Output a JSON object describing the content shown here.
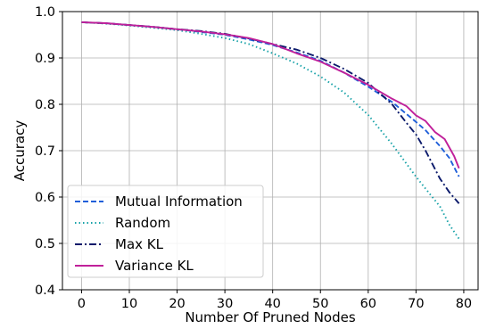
{
  "chart_data": {
    "type": "line",
    "title": "",
    "xlabel": "Number Of Pruned Nodes",
    "ylabel": "Accuracy",
    "xlim": [
      -4,
      83
    ],
    "ylim": [
      0.4,
      1.0
    ],
    "xticks": [
      0,
      10,
      20,
      30,
      40,
      50,
      60,
      70,
      80
    ],
    "yticks": [
      0.4,
      0.5,
      0.6,
      0.7,
      0.8,
      0.9,
      1.0
    ],
    "grid": true,
    "legend_position": "lower-left",
    "series": [
      {
        "name": "Mutual Information",
        "color": "#1f5fd9",
        "dash": "dashed",
        "x": [
          0,
          5,
          10,
          15,
          20,
          25,
          30,
          35,
          40,
          45,
          50,
          55,
          60,
          65,
          70,
          72,
          75,
          77,
          79
        ],
        "y": [
          0.977,
          0.975,
          0.971,
          0.967,
          0.962,
          0.956,
          0.95,
          0.94,
          0.928,
          0.912,
          0.894,
          0.868,
          0.838,
          0.805,
          0.762,
          0.744,
          0.71,
          0.684,
          0.644
        ]
      },
      {
        "name": "Random",
        "color": "#17a2a8",
        "dash": "dotted",
        "x": [
          0,
          5,
          10,
          15,
          20,
          25,
          30,
          35,
          40,
          45,
          50,
          55,
          60,
          65,
          70,
          72,
          75,
          77,
          79
        ],
        "y": [
          0.977,
          0.974,
          0.97,
          0.965,
          0.96,
          0.952,
          0.943,
          0.93,
          0.91,
          0.888,
          0.86,
          0.825,
          0.777,
          0.714,
          0.644,
          0.618,
          0.58,
          0.54,
          0.51
        ]
      },
      {
        "name": "Max KL",
        "color": "#0b1a6b",
        "dash": "dashdot",
        "x": [
          0,
          5,
          10,
          15,
          20,
          25,
          30,
          35,
          40,
          45,
          50,
          55,
          60,
          65,
          68,
          70,
          72,
          75,
          77,
          79
        ],
        "y": [
          0.977,
          0.975,
          0.971,
          0.967,
          0.962,
          0.958,
          0.952,
          0.942,
          0.93,
          0.918,
          0.9,
          0.876,
          0.846,
          0.8,
          0.76,
          0.735,
          0.7,
          0.64,
          0.61,
          0.586
        ]
      },
      {
        "name": "Variance KL",
        "color": "#c0209a",
        "dash": "solid",
        "x": [
          0,
          5,
          10,
          15,
          20,
          25,
          30,
          35,
          40,
          45,
          50,
          55,
          60,
          65,
          68,
          70,
          72,
          74,
          76,
          78,
          79
        ],
        "y": [
          0.977,
          0.975,
          0.971,
          0.967,
          0.962,
          0.957,
          0.951,
          0.943,
          0.93,
          0.91,
          0.892,
          0.868,
          0.842,
          0.812,
          0.796,
          0.776,
          0.764,
          0.74,
          0.725,
          0.688,
          0.662
        ]
      }
    ]
  }
}
